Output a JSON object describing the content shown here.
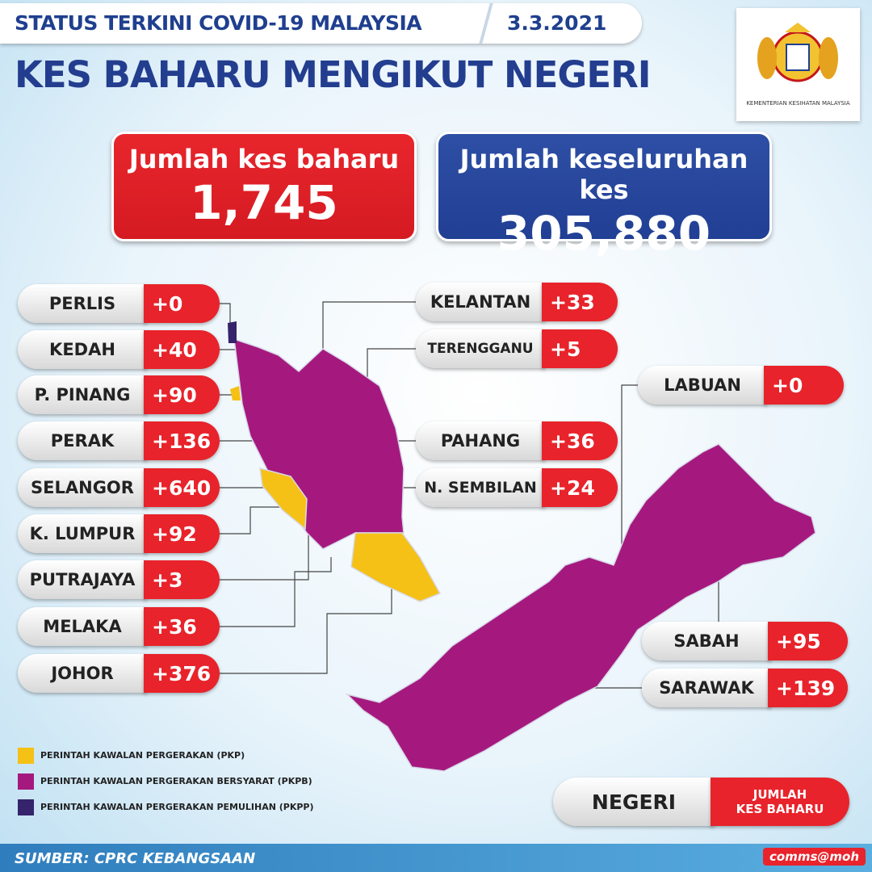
{
  "header": {
    "title": "STATUS TERKINI COVID-19 MALAYSIA",
    "date": "3.3.2021",
    "heading": "KES BAHARU MENGIKUT NEGERI",
    "logo_caption": "KEMENTERIAN KESIHATAN MALAYSIA"
  },
  "totals": {
    "new_cases": {
      "label": "Jumlah kes baharu",
      "value": "1,745"
    },
    "total_cases": {
      "label": "Jumlah keseluruhan kes",
      "value": "305,880"
    }
  },
  "states": [
    {
      "name": "PERLIS",
      "cases": "+0"
    },
    {
      "name": "KEDAH",
      "cases": "+40"
    },
    {
      "name": "P. PINANG",
      "cases": "+90"
    },
    {
      "name": "PERAK",
      "cases": "+136"
    },
    {
      "name": "SELANGOR",
      "cases": "+640"
    },
    {
      "name": "K. LUMPUR",
      "cases": "+92"
    },
    {
      "name": "PUTRAJAYA",
      "cases": "+3"
    },
    {
      "name": "MELAKA",
      "cases": "+36"
    },
    {
      "name": "JOHOR",
      "cases": "+376"
    },
    {
      "name": "KELANTAN",
      "cases": "+33"
    },
    {
      "name": "TERENGGANU",
      "cases": "+5"
    },
    {
      "name": "PAHANG",
      "cases": "+36"
    },
    {
      "name": "N. SEMBILAN",
      "cases": "+24"
    },
    {
      "name": "LABUAN",
      "cases": "+0"
    },
    {
      "name": "SABAH",
      "cases": "+95"
    },
    {
      "name": "SARAWAK",
      "cases": "+139"
    }
  ],
  "legend": [
    {
      "label": "PERINTAH KAWALAN PERGERAKAN (PKP)",
      "color": "#f5c116"
    },
    {
      "label": "PERINTAH KAWALAN PERGERAKAN BERSYARAT (PKPB)",
      "color": "#a5197f"
    },
    {
      "label": "PERINTAH KAWALAN PERGERAKAN PEMULIHAN (PKPP)",
      "color": "#35236b"
    }
  ],
  "key": {
    "state": "NEGERI",
    "cases_line1": "JUMLAH",
    "cases_line2": "KES BAHARU"
  },
  "footer": {
    "source": "SUMBER: CPRC KEBANGSAAN",
    "handle": "comms@moh"
  }
}
